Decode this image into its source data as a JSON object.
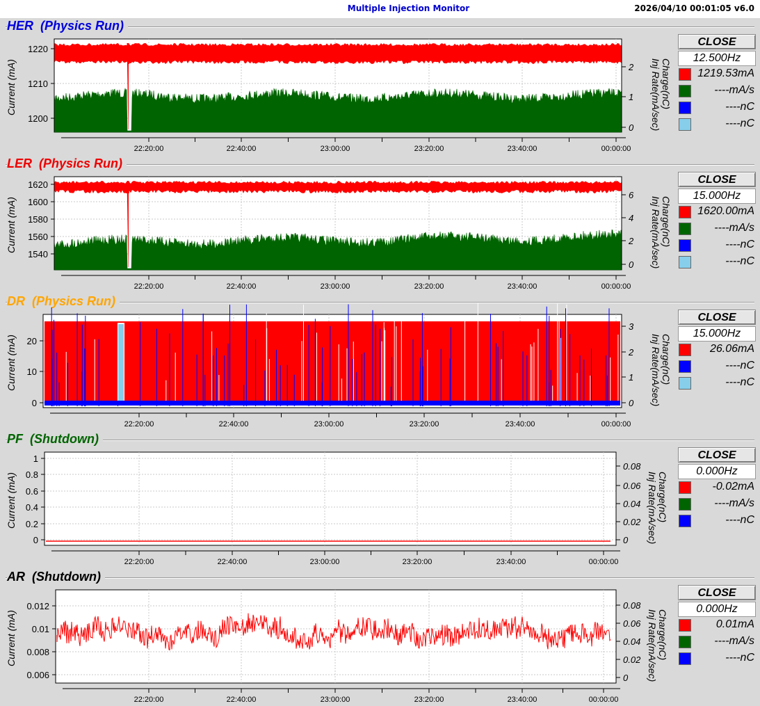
{
  "app": {
    "title": "Multiple Injection Monitor",
    "timestamp": "2026/04/10 00:01:05   v6.0"
  },
  "time_ticks": [
    "22:20:00",
    "22:40:00",
    "23:00:00",
    "23:20:00",
    "23:40:00",
    "00:00:00"
  ],
  "axis_labels": {
    "y_left": "Current (mA)",
    "y_right_1": "Charge(nC)",
    "y_right_2": "Inj Rate(mA/sec)"
  },
  "colors": {
    "current": "#ff0000",
    "rate": "#006400",
    "charge_main": "#0000ff",
    "charge_sub": "#87ceeb",
    "grid": "#c8c8c8"
  },
  "panels": [
    {
      "id": "her",
      "title": "HER  (Physics Run)",
      "title_color": "#0000dd",
      "close_label": "CLOSE",
      "frequency": "12.500Hz",
      "legend": [
        {
          "color": "#ff0000",
          "value": "1219.53mA"
        },
        {
          "color": "#006400",
          "value": "----mA/s"
        },
        {
          "color": "#0000ff",
          "value": "----nC"
        },
        {
          "color": "#87ceeb",
          "value": "----nC"
        }
      ],
      "y_ticks": [
        "1220",
        "1210",
        "1200"
      ],
      "y2_ticks": [
        "2",
        "1",
        "0"
      ]
    },
    {
      "id": "ler",
      "title": "LER  (Physics Run)",
      "title_color": "#ee0000",
      "close_label": "CLOSE",
      "frequency": "15.000Hz",
      "legend": [
        {
          "color": "#ff0000",
          "value": "1620.00mA"
        },
        {
          "color": "#006400",
          "value": "----mA/s"
        },
        {
          "color": "#0000ff",
          "value": "----nC"
        },
        {
          "color": "#87ceeb",
          "value": "----nC"
        }
      ],
      "y_ticks": [
        "1620",
        "1600",
        "1580",
        "1560",
        "1540"
      ],
      "y2_ticks": [
        "6",
        "4",
        "2",
        "0"
      ]
    },
    {
      "id": "dr",
      "title": "DR  (Physics Run)",
      "title_color": "#ffa500",
      "close_label": "CLOSE",
      "frequency": "15.000Hz",
      "legend": [
        {
          "color": "#ff0000",
          "value": "26.06mA"
        },
        {
          "color": "#0000ff",
          "value": "----nC"
        },
        {
          "color": "#87ceeb",
          "value": "----nC"
        }
      ],
      "y_ticks": [
        "20",
        "10",
        "0"
      ],
      "y2_ticks": [
        "3",
        "2",
        "1",
        "0"
      ]
    },
    {
      "id": "pf",
      "title": "PF  (Shutdown)",
      "title_color": "#006400",
      "close_label": "CLOSE",
      "frequency": "0.000Hz",
      "legend": [
        {
          "color": "#ff0000",
          "value": "-0.02mA"
        },
        {
          "color": "#006400",
          "value": "----mA/s"
        },
        {
          "color": "#0000ff",
          "value": "----nC"
        }
      ],
      "y_ticks": [
        "1",
        "0.8",
        "0.6",
        "0.4",
        "0.2",
        "0"
      ],
      "y2_ticks": [
        "0.08",
        "0.06",
        "0.04",
        "0.02",
        "0"
      ]
    },
    {
      "id": "ar",
      "title": "AR  (Shutdown)",
      "title_color": "#000000",
      "close_label": "CLOSE",
      "frequency": "0.000Hz",
      "legend": [
        {
          "color": "#ff0000",
          "value": "0.01mA"
        },
        {
          "color": "#006400",
          "value": "----mA/s"
        },
        {
          "color": "#0000ff",
          "value": "----nC"
        }
      ],
      "y_ticks": [
        "0.012",
        "0.01",
        "0.008",
        "0.006"
      ],
      "y2_ticks": [
        "0.08",
        "0.06",
        "0.04",
        "0.02",
        "0"
      ]
    }
  ],
  "chart_data": [
    {
      "type": "area",
      "panel": "HER",
      "y_ticks": [
        1200,
        1210,
        1220
      ],
      "ylim": [
        1196,
        1224
      ],
      "y2lim": [
        0,
        2.5
      ],
      "series": [
        {
          "name": "Current",
          "approx_level": 1217.5,
          "dip_at": "22:16"
        },
        {
          "name": "Inj Rate",
          "approx_level": 1.0
        }
      ]
    },
    {
      "type": "area",
      "panel": "LER",
      "y_ticks": [
        1540,
        1560,
        1580,
        1600,
        1620
      ],
      "ylim": [
        1532,
        1624
      ],
      "y2lim": [
        0,
        7
      ],
      "series": [
        {
          "name": "Current",
          "approx_level": 1617,
          "dip_at": "22:16"
        },
        {
          "name": "Inj Rate",
          "approx_level": 2.0
        }
      ]
    },
    {
      "type": "area",
      "panel": "DR",
      "y_ticks": [
        0,
        10,
        20
      ],
      "ylim": [
        -2,
        27
      ],
      "y2lim": [
        0,
        3.2
      ],
      "series": [
        {
          "name": "Current",
          "approx_level": 26
        },
        {
          "name": "Charge",
          "approx_level": 0.1
        }
      ]
    },
    {
      "type": "line",
      "panel": "PF",
      "y_ticks": [
        0,
        0.2,
        0.4,
        0.6,
        0.8,
        1
      ],
      "ylim": [
        -0.02,
        1.02
      ],
      "y2lim": [
        0,
        0.09
      ],
      "series": [
        {
          "name": "Current",
          "approx_level": -0.02
        }
      ]
    },
    {
      "type": "line",
      "panel": "AR",
      "y_ticks": [
        0.006,
        0.008,
        0.01,
        0.012
      ],
      "ylim": [
        0.0057,
        0.0132
      ],
      "y2lim": [
        0,
        0.09
      ],
      "series": [
        {
          "name": "Current",
          "approx_level": 0.0093
        }
      ]
    }
  ]
}
